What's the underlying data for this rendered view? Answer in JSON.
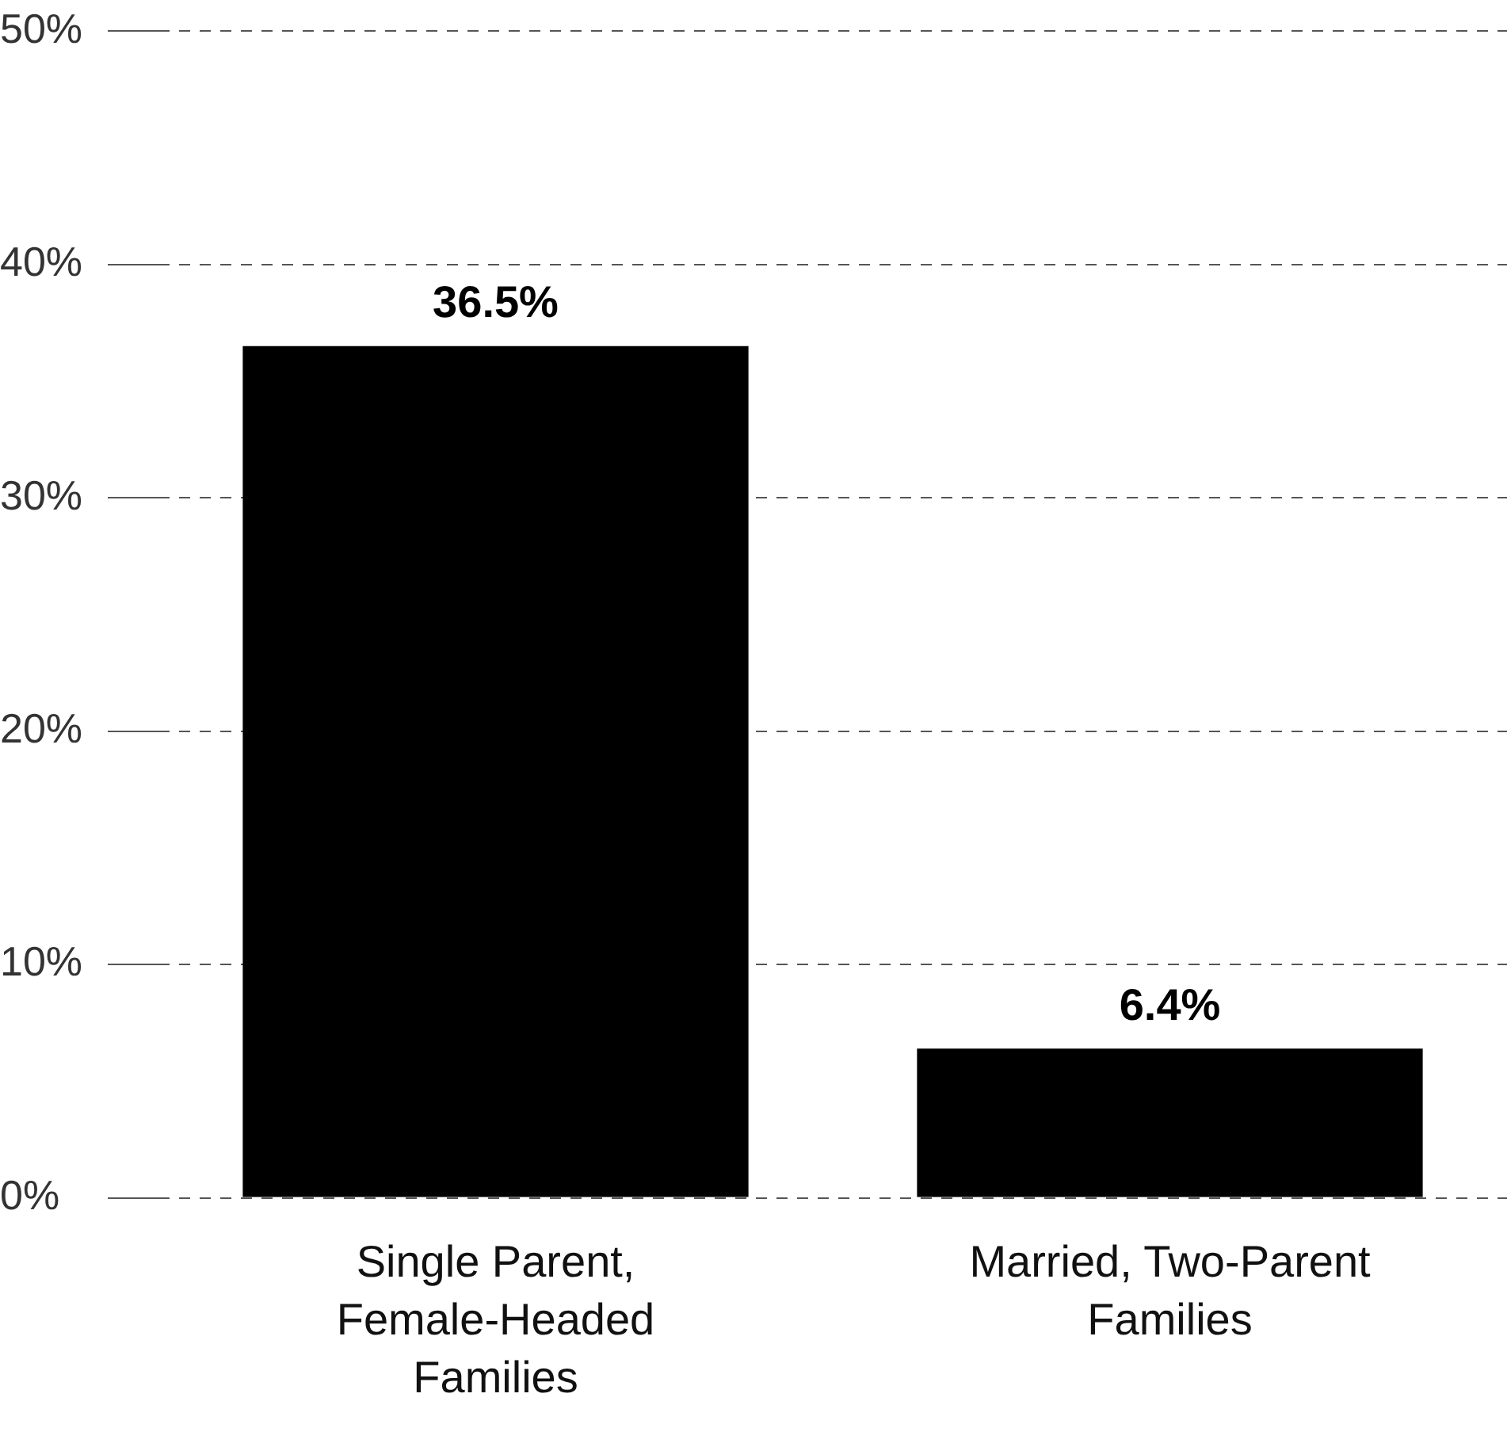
{
  "chart_data": {
    "type": "bar",
    "categories": [
      "Single Parent, Female-Headed Families",
      "Married, Two-Parent Families"
    ],
    "values": [
      36.5,
      6.4
    ],
    "color": "#000000",
    "value_labels": [
      "36.5%",
      "6.4%"
    ],
    "ylim": [
      0,
      50
    ],
    "yticks": [
      {
        "value": 0,
        "label": "0%"
      },
      {
        "value": 10,
        "label": "10%"
      },
      {
        "value": 20,
        "label": "20%"
      },
      {
        "value": 30,
        "label": "30%"
      },
      {
        "value": 40,
        "label": "40%"
      },
      {
        "value": 50,
        "label": "50%"
      }
    ],
    "grid": "y"
  }
}
